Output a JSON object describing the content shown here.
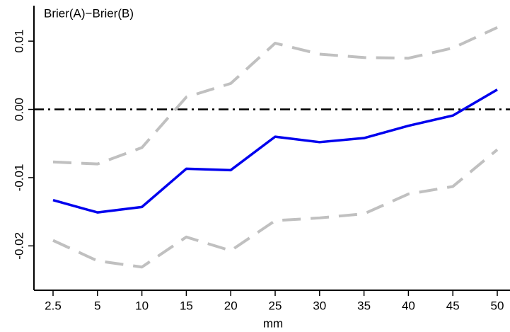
{
  "chart_data": {
    "type": "line",
    "annotation": "Brier(A)−Brier(B)",
    "x_label": "mm",
    "categories": [
      "2.5",
      "5",
      "10",
      "15",
      "20",
      "25",
      "30",
      "35",
      "40",
      "45",
      "50"
    ],
    "series": [
      {
        "color": "#c0c0c0",
        "dash": true,
        "values": [
          -0.0077,
          -0.008,
          -0.0056,
          0.0018,
          0.0038,
          0.0097,
          0.0081,
          0.0076,
          0.0075,
          0.009,
          0.012
        ]
      },
      {
        "color": "#c0c0c0",
        "dash": true,
        "values": [
          -0.0192,
          -0.0222,
          -0.0231,
          -0.0187,
          -0.0207,
          -0.0163,
          -0.0159,
          -0.0153,
          -0.0124,
          -0.0113,
          -0.0059
        ]
      },
      {
        "color": "#0000ee",
        "dash": false,
        "values": [
          -0.0133,
          -0.0151,
          -0.0143,
          -0.0087,
          -0.0089,
          -0.004,
          -0.0048,
          -0.0042,
          -0.0024,
          -0.0009,
          0.0029
        ]
      }
    ],
    "reference_line": 0,
    "ylim": [
      -0.0265,
      0.0152
    ],
    "yticks": [
      -0.02,
      -0.01,
      {
        "value": 0,
        "label": "0.00"
      },
      0.01
    ]
  }
}
